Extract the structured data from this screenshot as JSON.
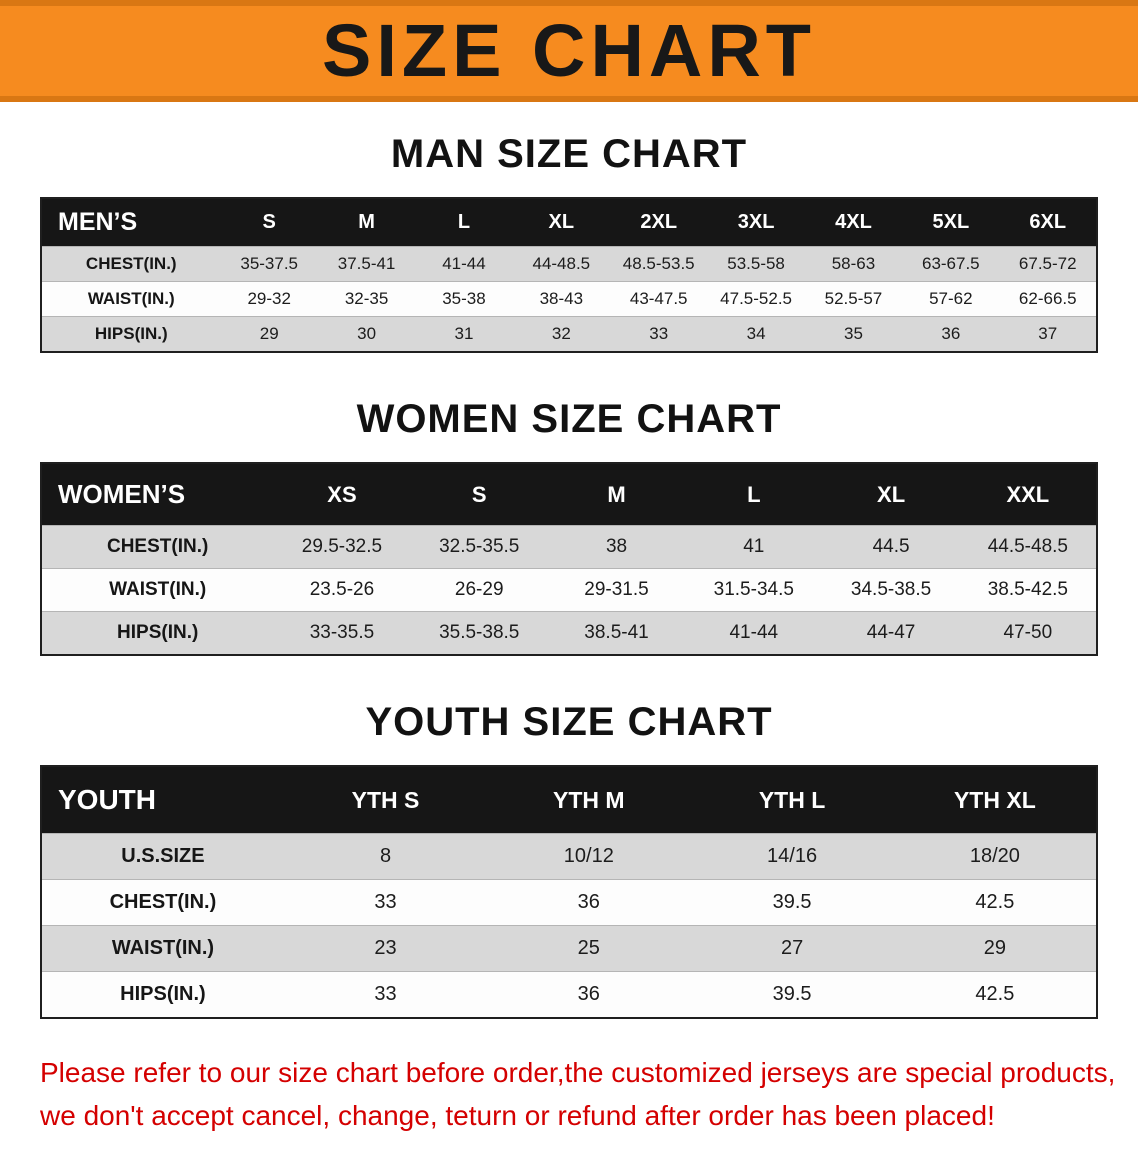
{
  "banner": {
    "title": "SIZE CHART"
  },
  "colors": {
    "banner_orange": "#f68b1f",
    "header_black": "#161616",
    "row_gray": "#d8d8d8",
    "disclaimer_red": "#d40000"
  },
  "sections": [
    {
      "id": "men",
      "heading": "MAN SIZE CHART",
      "table": {
        "header": [
          "MEN’S",
          "S",
          "M",
          "L",
          "XL",
          "2XL",
          "3XL",
          "4XL",
          "5XL",
          "6XL"
        ],
        "rows": [
          [
            "CHEST(IN.)",
            "35-37.5",
            "37.5-41",
            "41-44",
            "44-48.5",
            "48.5-53.5",
            "53.5-58",
            "58-63",
            "63-67.5",
            "67.5-72"
          ],
          [
            "WAIST(IN.)",
            "29-32",
            "32-35",
            "35-38",
            "38-43",
            "43-47.5",
            "47.5-52.5",
            "52.5-57",
            "57-62",
            "62-66.5"
          ],
          [
            "HIPS(IN.)",
            "29",
            "30",
            "31",
            "32",
            "33",
            "34",
            "35",
            "36",
            "37"
          ]
        ]
      }
    },
    {
      "id": "women",
      "heading": "WOMEN SIZE CHART",
      "table": {
        "header": [
          "WOMEN’S",
          "XS",
          "S",
          "M",
          "L",
          "XL",
          "XXL"
        ],
        "rows": [
          [
            "CHEST(IN.)",
            "29.5-32.5",
            "32.5-35.5",
            "38",
            "41",
            "44.5",
            "44.5-48.5"
          ],
          [
            "WAIST(IN.)",
            "23.5-26",
            "26-29",
            "29-31.5",
            "31.5-34.5",
            "34.5-38.5",
            "38.5-42.5"
          ],
          [
            "HIPS(IN.)",
            "33-35.5",
            "35.5-38.5",
            "38.5-41",
            "41-44",
            "44-47",
            "47-50"
          ]
        ]
      }
    },
    {
      "id": "youth",
      "heading": "YOUTH SIZE CHART",
      "table": {
        "header": [
          "YOUTH",
          "YTH S",
          "YTH M",
          "YTH L",
          "YTH XL"
        ],
        "rows": [
          [
            "U.S.SIZE",
            "8",
            "10/12",
            "14/16",
            "18/20"
          ],
          [
            "CHEST(IN.)",
            "33",
            "36",
            "39.5",
            "42.5"
          ],
          [
            "WAIST(IN.)",
            "23",
            "25",
            "27",
            "29"
          ],
          [
            "HIPS(IN.)",
            "33",
            "36",
            "39.5",
            "42.5"
          ]
        ]
      }
    }
  ],
  "disclaimer": {
    "lines": [
      "Please refer to our size chart before order,the customized jerseys are special products,",
      "we don't accept cancel, change, teturn or refund after order has been placed!"
    ]
  }
}
